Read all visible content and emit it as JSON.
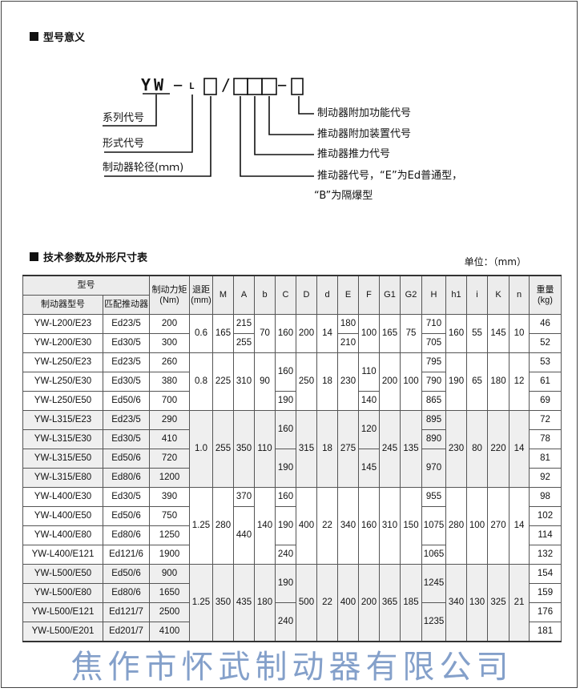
{
  "section1": {
    "title": "型号意义"
  },
  "model_code": {
    "series": "YW",
    "dash1": "−",
    "form": "L",
    "slash": "/",
    "dash2": "−",
    "labels": {
      "series_code": "系列代号",
      "form_code": "形式代号",
      "wheel_dia": "制动器轮径(ｍｍ)",
      "extra_func": "制动器附加功能代号",
      "actuator_device": "推动器附加装置代号",
      "actuator_force": "推动器推力代号",
      "actuator_code": "推动器代号，“E”为Ed普通型，",
      "actuator_code_2": "“B”为隔爆型"
    }
  },
  "section2": {
    "title": "技术参数及外形尺寸表",
    "unit": "单位：（mm）"
  },
  "table": {
    "header": {
      "model_group": "型号",
      "brake_model": "制动器型号",
      "actuator": "匹配推动器",
      "torque": "制动力矩\n(Nm)",
      "retract": "退距\n(mm)",
      "cols": {
        "M": "M",
        "A": "A",
        "b": "b",
        "C": "C",
        "D": "D",
        "d": "d",
        "E": "E",
        "F": "F",
        "G1": "G1",
        "G2": "G2",
        "H": "H",
        "h1": "h1",
        "i": "i",
        "K": "K",
        "n": "n"
      },
      "weight": "重量\n(kg)"
    },
    "groups": [
      {
        "rows": [
          {
            "model": "YW-L200/E23",
            "actuator": "Ed23/5",
            "torque": "200",
            "weight": "46"
          },
          {
            "model": "YW-L200/E30",
            "actuator": "Ed30/5",
            "torque": "300",
            "weight": "52"
          }
        ],
        "cols": {
          "retract": "0.6",
          "M": "165",
          "A": [
            [
              "215",
              1
            ],
            [
              "255",
              1
            ]
          ],
          "b": "70",
          "C": "160",
          "D": "200",
          "d": "14",
          "E": [
            [
              "180",
              1
            ],
            [
              "210",
              1
            ]
          ],
          "F": "100",
          "G1": "165",
          "G2": "75",
          "H": [
            [
              "710",
              1
            ],
            [
              "705",
              1
            ]
          ],
          "h1": "160",
          "i": "55",
          "K": "145",
          "n": "10"
        }
      },
      {
        "rows": [
          {
            "model": "YW-L250/E23",
            "actuator": "Ed23/5",
            "torque": "260",
            "weight": "53"
          },
          {
            "model": "YW-L250/E30",
            "actuator": "Ed30/5",
            "torque": "380",
            "weight": "61"
          },
          {
            "model": "YW-L250/E50",
            "actuator": "Ed50/6",
            "torque": "700",
            "weight": "69"
          }
        ],
        "cols": {
          "retract": "0.8",
          "M": "225",
          "A": "310",
          "b": "90",
          "C": [
            [
              "160",
              2
            ],
            [
              "190",
              1
            ]
          ],
          "D": "250",
          "d": "18",
          "E": "230",
          "F": [
            [
              "110",
              2
            ],
            [
              "140",
              1
            ]
          ],
          "G1": "200",
          "G2": "100",
          "H": [
            [
              "795",
              1
            ],
            [
              "790",
              1
            ],
            [
              "865",
              1
            ]
          ],
          "h1": "190",
          "i": "65",
          "K": "180",
          "n": "12"
        }
      },
      {
        "rows": [
          {
            "model": "YW-L315/E23",
            "actuator": "Ed23/5",
            "torque": "290",
            "weight": "72"
          },
          {
            "model": "YW-L315/E30",
            "actuator": "Ed30/5",
            "torque": "410",
            "weight": "78"
          },
          {
            "model": "YW-L315/E50",
            "actuator": "Ed50/6",
            "torque": "720",
            "weight": "81"
          },
          {
            "model": "YW-L315/E80",
            "actuator": "Ed80/6",
            "torque": "1200",
            "weight": "92"
          }
        ],
        "cols": {
          "retract": "1.0",
          "M": "255",
          "A": "350",
          "b": "110",
          "C": [
            [
              "160",
              2
            ],
            [
              "190",
              2
            ]
          ],
          "D": "315",
          "d": "18",
          "E": "275",
          "F": [
            [
              "120",
              2
            ],
            [
              "145",
              2
            ]
          ],
          "G1": "245",
          "G2": "135",
          "H": [
            [
              "895",
              1
            ],
            [
              "890",
              1
            ],
            [
              "970",
              2
            ]
          ],
          "h1": "230",
          "i": "80",
          "K": "220",
          "n": "14"
        }
      },
      {
        "rows": [
          {
            "model": "YW-L400/E30",
            "actuator": "Ed30/5",
            "torque": "390",
            "weight": "98"
          },
          {
            "model": "YW-L400/E50",
            "actuator": "Ed50/6",
            "torque": "750",
            "weight": "102"
          },
          {
            "model": "YW-L400/E80",
            "actuator": "Ed80/6",
            "torque": "1250",
            "weight": "114"
          },
          {
            "model": "YW-L400/E121",
            "actuator": "Ed121/6",
            "torque": "1900",
            "weight": "132"
          }
        ],
        "cols": {
          "retract": "1.25",
          "M": "280",
          "A": [
            [
              "370",
              1
            ],
            [
              "440",
              3
            ]
          ],
          "b": "140",
          "C": [
            [
              "160",
              1
            ],
            [
              "190",
              2
            ],
            [
              "240",
              1
            ]
          ],
          "D": "400",
          "d": "22",
          "E": "340",
          "F": "160",
          "G1": "310",
          "G2": "150",
          "H": [
            [
              "955",
              1
            ],
            [
              "1075",
              2
            ],
            [
              "1065",
              1
            ]
          ],
          "h1": "280",
          "i": "100",
          "K": "270",
          "n": "14"
        }
      },
      {
        "rows": [
          {
            "model": "YW-L500/E50",
            "actuator": "Ed50/6",
            "torque": "900",
            "weight": "154"
          },
          {
            "model": "YW-L500/E80",
            "actuator": "Ed80/6",
            "torque": "1650",
            "weight": "159"
          },
          {
            "model": "YW-L500/E121",
            "actuator": "Ed121/7",
            "torque": "2500",
            "weight": "176"
          },
          {
            "model": "YW-L500/E201",
            "actuator": "Ed201/7",
            "torque": "4100",
            "weight": "181"
          }
        ],
        "cols": {
          "retract": "1.25",
          "M": "350",
          "A": "435",
          "b": "180",
          "C": [
            [
              "190",
              2
            ],
            [
              "240",
              2
            ]
          ],
          "D": "500",
          "d": "22",
          "E": "400",
          "F": "200",
          "G1": "365",
          "G2": "185",
          "H": [
            [
              "1245",
              2
            ],
            [
              "1235",
              2
            ]
          ],
          "h1": "340",
          "i": "130",
          "K": "325",
          "n": "21"
        }
      }
    ]
  },
  "watermark": "焦作市怀武制动器有限公司",
  "colors": {
    "watermark": "#5078b4",
    "header_bg": "#ececec",
    "shade_bg": "#efefef"
  }
}
